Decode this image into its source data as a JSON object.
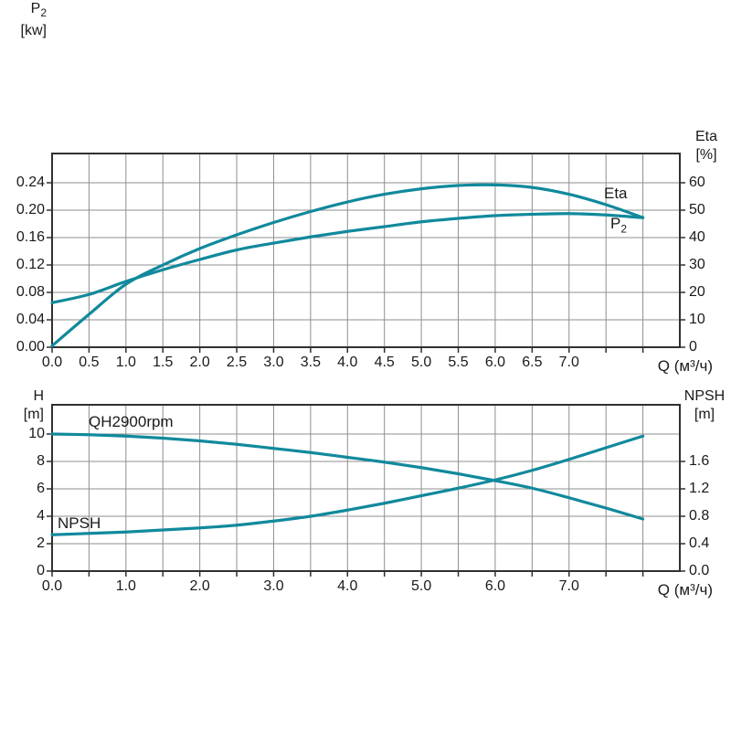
{
  "colors": {
    "curve": "#11899c",
    "grid": "#8f8f8f",
    "axis": "#303030",
    "text": "#1a1a1a",
    "background": "#ffffff"
  },
  "chart_data": [
    {
      "type": "line",
      "title": "",
      "x_axis": {
        "label": "Q (м³/ч)",
        "range": [
          0,
          8.5
        ],
        "grid_step": 0.5,
        "grid_max": 8.0,
        "tick_values": [
          0,
          0.5,
          1,
          1.5,
          2,
          2.5,
          3,
          3.5,
          4,
          4.5,
          5,
          5.5,
          6,
          6.5,
          7,
          7.5,
          8
        ],
        "tick_labels": [
          "0.0",
          "0.5",
          "1.0",
          "1.5",
          "2.0",
          "2.5",
          "3.0",
          "3.5",
          "4.0",
          "4.5",
          "5.0",
          "5.5",
          "6.0",
          "6.5",
          "7.0",
          "",
          ""
        ]
      },
      "y_left": {
        "label": "P",
        "sub": "2",
        "unit": "[kw]",
        "range": [
          0,
          0.2827
        ],
        "tick_values": [
          0,
          0.04,
          0.08,
          0.12,
          0.16,
          0.2,
          0.24
        ],
        "tick_labels": [
          "0.00",
          "0.04",
          "0.08",
          "0.12",
          "0.16",
          "0.20",
          "0.24"
        ]
      },
      "y_right": {
        "label": "Eta",
        "sub": "",
        "unit": "[%]",
        "range": [
          0,
          70.67
        ],
        "tick_values": [
          0,
          10,
          20,
          30,
          40,
          50,
          60
        ],
        "tick_labels": [
          "0",
          "10",
          "20",
          "30",
          "40",
          "50",
          "60"
        ]
      },
      "series": [
        {
          "name": "Eta",
          "axis": "right",
          "x": [
            0,
            0.5,
            1,
            1.5,
            2,
            2.5,
            3,
            3.5,
            4,
            4.5,
            5,
            5.5,
            6,
            6.5,
            7,
            7.5,
            8
          ],
          "y": [
            0.5,
            12,
            23,
            30,
            36,
            41,
            45.5,
            49.5,
            53,
            55.8,
            57.8,
            59,
            59.2,
            58.3,
            55.8,
            52,
            47.3
          ]
        },
        {
          "name": "P2",
          "axis": "left",
          "x": [
            0,
            0.5,
            1,
            1.5,
            2,
            2.5,
            3,
            3.5,
            4,
            4.5,
            5,
            5.5,
            6,
            6.5,
            7,
            7.5,
            8
          ],
          "y": [
            0.065,
            0.077,
            0.096,
            0.113,
            0.128,
            0.142,
            0.152,
            0.161,
            0.169,
            0.176,
            0.183,
            0.188,
            0.192,
            0.194,
            0.195,
            0.193,
            0.189
          ]
        }
      ],
      "annotations": [
        {
          "text": "Eta",
          "sub": ""
        },
        {
          "text": "P",
          "sub": "2"
        }
      ],
      "legend_position": "in-plot-right",
      "grid": true
    },
    {
      "type": "line",
      "title": "",
      "x_axis": {
        "label": "Q (м³/ч)",
        "range": [
          0,
          8.5
        ],
        "grid_step": 0.5,
        "grid_max": 8.0,
        "tick_values": [
          0,
          0.5,
          1,
          1.5,
          2,
          2.5,
          3,
          3.5,
          4,
          4.5,
          5,
          5.5,
          6,
          6.5,
          7,
          7.5,
          8
        ],
        "tick_labels": [
          "0.0",
          "",
          "1.0",
          "",
          "2.0",
          "",
          "3.0",
          "",
          "4.0",
          "",
          "5.0",
          "",
          "6.0",
          "",
          "7.0",
          "",
          ""
        ]
      },
      "y_left": {
        "label": "H",
        "sub": "",
        "unit": "[m]",
        "range": [
          0,
          12.133
        ],
        "tick_values": [
          0,
          2,
          4,
          6,
          8,
          10
        ],
        "tick_labels": [
          "0",
          "2",
          "4",
          "6",
          "8",
          "10"
        ]
      },
      "y_right": {
        "label": "NPSH",
        "sub": "",
        "unit": "[m]",
        "range": [
          0,
          2.4267
        ],
        "tick_values": [
          0,
          0.4,
          0.8,
          1.2,
          1.6
        ],
        "tick_labels": [
          "0.0",
          "0.4",
          "0.8",
          "1.2",
          "1.6"
        ]
      },
      "series": [
        {
          "name": "QH2900rpm",
          "axis": "left",
          "x": [
            0,
            0.5,
            1,
            1.5,
            2,
            2.5,
            3,
            3.5,
            4,
            4.5,
            5,
            5.5,
            6,
            6.5,
            7,
            7.5,
            8
          ],
          "y": [
            10.0,
            9.95,
            9.85,
            9.7,
            9.5,
            9.25,
            8.95,
            8.65,
            8.3,
            7.95,
            7.55,
            7.1,
            6.6,
            6.05,
            5.35,
            4.6,
            3.8
          ]
        },
        {
          "name": "NPSH",
          "axis": "right",
          "x": [
            0,
            0.5,
            1,
            1.5,
            2,
            2.5,
            3,
            3.5,
            4,
            4.5,
            5,
            5.5,
            6,
            6.5,
            7,
            7.5,
            8
          ],
          "y": [
            0.53,
            0.55,
            0.57,
            0.6,
            0.63,
            0.67,
            0.73,
            0.8,
            0.89,
            0.99,
            1.1,
            1.21,
            1.33,
            1.47,
            1.63,
            1.8,
            1.97
          ]
        }
      ],
      "annotations": [
        {
          "text": "QH2900rpm",
          "sub": ""
        },
        {
          "text": "NPSH",
          "sub": ""
        }
      ],
      "legend_position": "in-plot-left",
      "grid": true
    }
  ]
}
